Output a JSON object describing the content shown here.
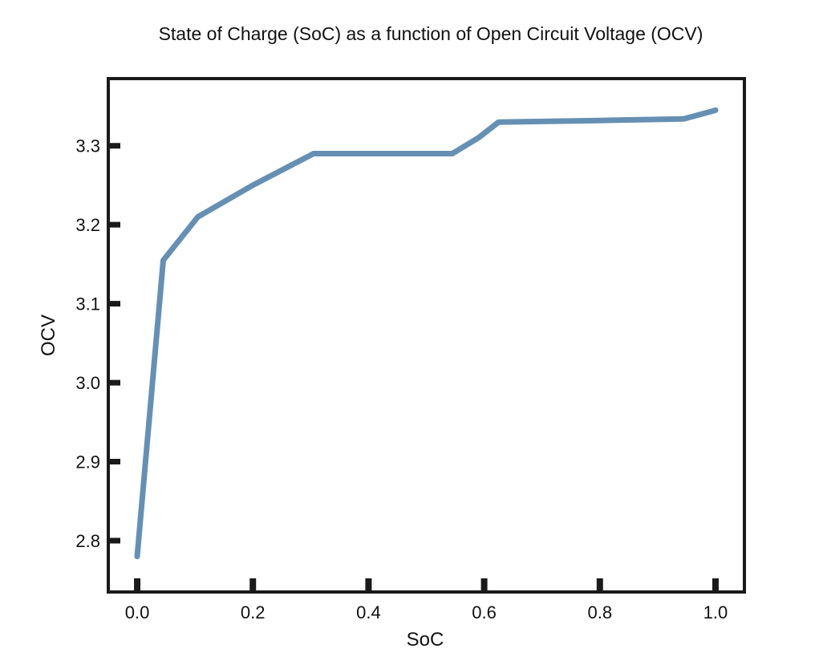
{
  "chart_data": {
    "type": "line",
    "title": "State of Charge (SoC) as a function of Open Circuit Voltage (OCV)",
    "xlabel": "SoC",
    "ylabel": "OCV",
    "xlim": [
      -0.05,
      1.05
    ],
    "ylim": [
      2.735,
      3.385
    ],
    "x_ticks": [
      0.0,
      0.2,
      0.4,
      0.6,
      0.8,
      1.0
    ],
    "x_tick_labels": [
      "0.0",
      "0.2",
      "0.4",
      "0.6",
      "0.8",
      "1.0"
    ],
    "y_ticks": [
      2.8,
      2.9,
      3.0,
      3.1,
      3.2,
      3.3
    ],
    "y_tick_labels": [
      "2.8",
      "2.9",
      "3.0",
      "3.1",
      "3.2",
      "3.3"
    ],
    "grid": false,
    "series": [
      {
        "color": "#6690b3",
        "x": [
          0.0,
          0.045,
          0.105,
          0.2,
          0.305,
          0.4,
          0.545,
          0.59,
          0.625,
          0.8,
          0.945,
          1.0
        ],
        "y": [
          2.78,
          3.155,
          3.21,
          3.25,
          3.29,
          3.29,
          3.29,
          3.31,
          3.33,
          3.332,
          3.334,
          3.345
        ]
      }
    ]
  }
}
